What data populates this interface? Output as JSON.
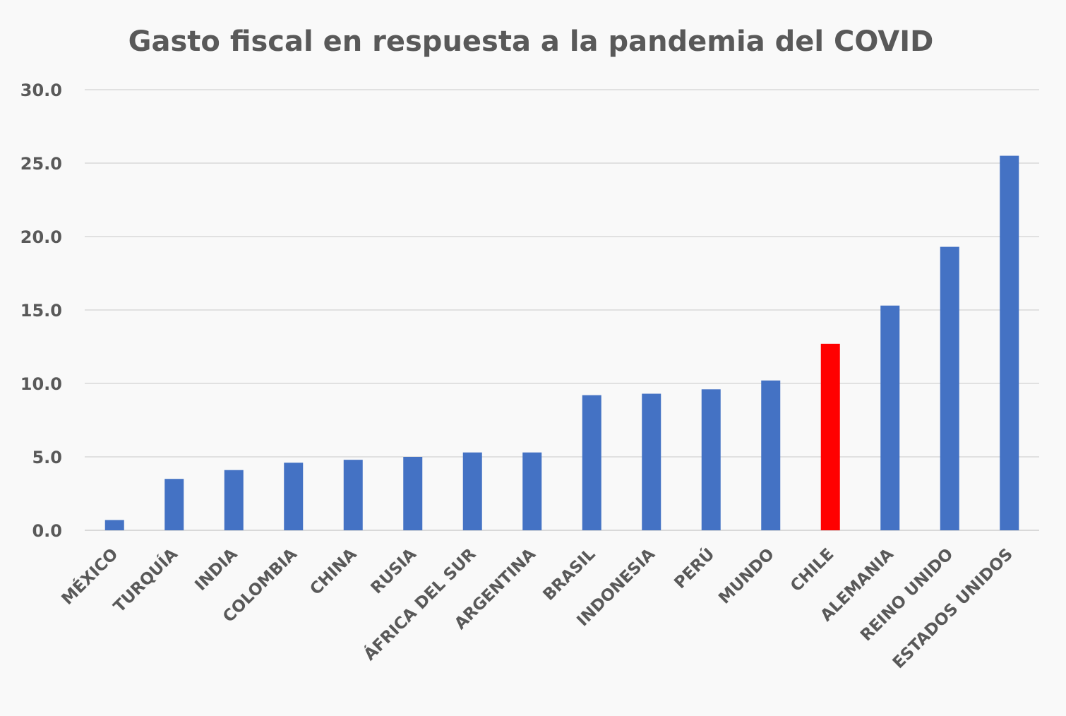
{
  "chart_data": {
    "type": "bar",
    "title": "Gasto fiscal en respuesta a la pandemia del COVID",
    "xlabel": "",
    "ylabel": "",
    "ylim": [
      0,
      30
    ],
    "y_ticks": [
      "0.0",
      "5.0",
      "10.0",
      "15.0",
      "20.0",
      "25.0",
      "30.0"
    ],
    "grid": true,
    "legend": "none",
    "categories": [
      "MÉXICO",
      "TURQUÍA",
      "INDIA",
      "COLOMBIA",
      "CHINA",
      "RUSIA",
      "ÁFRICA DEL SUR",
      "ARGENTINA",
      "BRASIL",
      "INDONESIA",
      "PERÚ",
      "MUNDO",
      "CHILE",
      "ALEMANIA",
      "REINO UNIDO",
      "ESTADOS UNIDOS"
    ],
    "values": [
      0.7,
      3.5,
      4.1,
      4.6,
      4.8,
      5.0,
      5.3,
      5.3,
      9.2,
      9.3,
      9.6,
      10.2,
      12.7,
      15.3,
      19.3,
      25.5
    ],
    "colors": {
      "default": "#4472c4",
      "highlight": "#ff0000",
      "grid": "#d9d9d9",
      "text": "#595959"
    },
    "highlight_category": "CHILE"
  }
}
